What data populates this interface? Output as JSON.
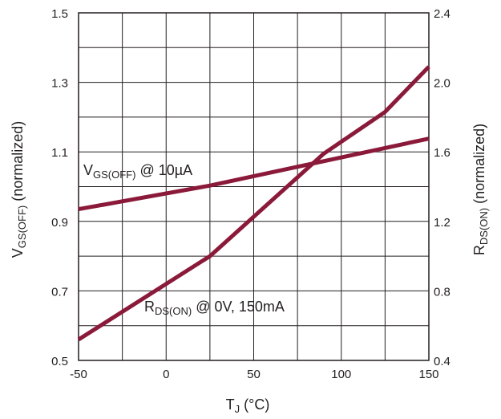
{
  "chart_data": {
    "type": "line",
    "title": "",
    "xlabel": {
      "main": "T",
      "sub": "J",
      "rest": " (°C)"
    },
    "ylabel_left": {
      "main": "V",
      "sub": "GS(OFF)",
      "rest": " (normalized)"
    },
    "ylabel_right": {
      "main": "R",
      "sub": "DS(ON)",
      "rest": " (normalized)"
    },
    "xlim": [
      -50,
      150
    ],
    "ylim_left": [
      0.5,
      1.5
    ],
    "ylim_right": [
      0.4,
      2.4
    ],
    "x_ticks": [
      "-50",
      "0",
      "50",
      "100",
      "150"
    ],
    "x_tick_values": [
      -50,
      0,
      50,
      100,
      150
    ],
    "y_left_ticks": [
      "0.5",
      "0.7",
      "0.9",
      "1.1",
      "1.3",
      "1.5"
    ],
    "y_left_tick_values": [
      0.5,
      0.7,
      0.9,
      1.1,
      1.3,
      1.5
    ],
    "y_right_ticks": [
      "0.4",
      "0.8",
      "1.2",
      "1.6",
      "2.0",
      "2.4"
    ],
    "y_right_tick_values": [
      0.4,
      0.8,
      1.2,
      1.6,
      2.0,
      2.4
    ],
    "grid": true,
    "series_color": "#8b1a3a",
    "series": [
      {
        "name": "VGS(OFF) @ 10µA",
        "label_parts": {
          "main": "V",
          "sub": "GS(OFF)",
          "rest": " @ 10µA"
        },
        "axis": "left",
        "x": [
          -50,
          25,
          150
        ],
        "y": [
          0.935,
          1.003,
          1.138
        ]
      },
      {
        "name": "RDS(ON) @ 0V, 150mA",
        "label_parts": {
          "main": "R",
          "sub": "DS(ON)",
          "rest": " @ 0V, 150mA"
        },
        "axis": "right",
        "x": [
          -50,
          25,
          90,
          125,
          150
        ],
        "y": [
          0.52,
          1.0,
          1.59,
          1.83,
          2.09
        ]
      }
    ]
  }
}
